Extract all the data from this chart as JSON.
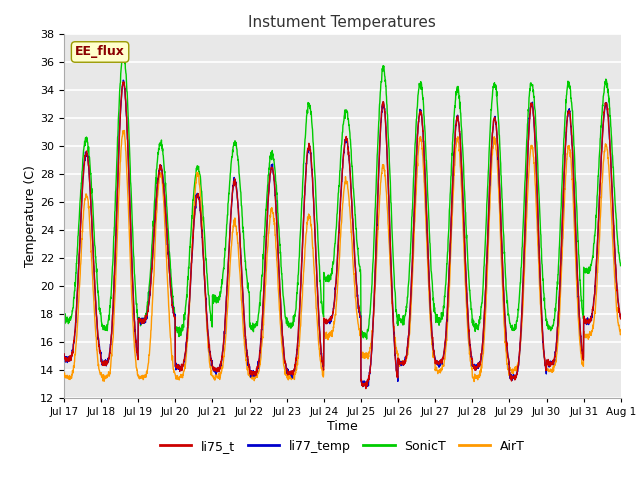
{
  "title": "Instument Temperatures",
  "xlabel": "Time",
  "ylabel": "Temperature (C)",
  "ylim": [
    12,
    38
  ],
  "yticks": [
    12,
    14,
    16,
    18,
    20,
    22,
    24,
    26,
    28,
    30,
    32,
    34,
    36,
    38
  ],
  "fig_bg": "#ffffff",
  "plot_bg": "#e8e8e8",
  "grid_color": "#ffffff",
  "annotation_text": "EE_flux",
  "annotation_bg": "#ffffcc",
  "annotation_fg": "#8b0000",
  "colors": {
    "li75_t": "#cc0000",
    "li77_temp": "#0000cc",
    "SonicT": "#00cc00",
    "AirT": "#ff9900"
  },
  "legend_labels": [
    "li75_t",
    "li77_temp",
    "SonicT",
    "AirT"
  ],
  "x_tick_labels": [
    "Jul 17",
    "Jul 18",
    "Jul 19",
    "Jul 20",
    "Jul 21",
    "Jul 22",
    "Jul 23",
    "Jul 24",
    "Jul 25",
    "Jul 26",
    "Jul 27",
    "Jul 28",
    "Jul 29",
    "Jul 30",
    "Jul 31",
    "Aug 1"
  ],
  "days": 15,
  "points_per_day": 144
}
